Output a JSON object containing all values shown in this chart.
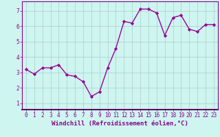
{
  "x": [
    0,
    1,
    2,
    3,
    4,
    5,
    6,
    7,
    8,
    9,
    10,
    11,
    12,
    13,
    14,
    15,
    16,
    17,
    18,
    19,
    20,
    21,
    22,
    23
  ],
  "y": [
    3.2,
    2.9,
    3.3,
    3.3,
    3.5,
    2.85,
    2.75,
    2.4,
    1.45,
    1.75,
    3.3,
    4.55,
    6.3,
    6.2,
    7.1,
    7.1,
    6.85,
    5.4,
    6.55,
    6.7,
    5.8,
    5.65,
    6.1,
    6.1
  ],
  "line_color": "#990099",
  "marker": "D",
  "markersize": 2.2,
  "linewidth": 1.0,
  "bg_color": "#cef5f0",
  "grid_color": "#aacccc",
  "xlabel": "Windchill (Refroidissement éolien,°C)",
  "xlabel_fontsize": 6.5,
  "xlabel_color": "#880088",
  "xlim": [
    -0.5,
    23.5
  ],
  "ylim": [
    0.6,
    7.6
  ],
  "yticks": [
    1,
    2,
    3,
    4,
    5,
    6,
    7
  ],
  "xticks": [
    0,
    1,
    2,
    3,
    4,
    5,
    6,
    7,
    8,
    9,
    10,
    11,
    12,
    13,
    14,
    15,
    16,
    17,
    18,
    19,
    20,
    21,
    22,
    23
  ],
  "tick_fontsize": 5.5,
  "tick_color": "#880088",
  "spine_color": "#880088",
  "border_bottom_color": "#660066"
}
